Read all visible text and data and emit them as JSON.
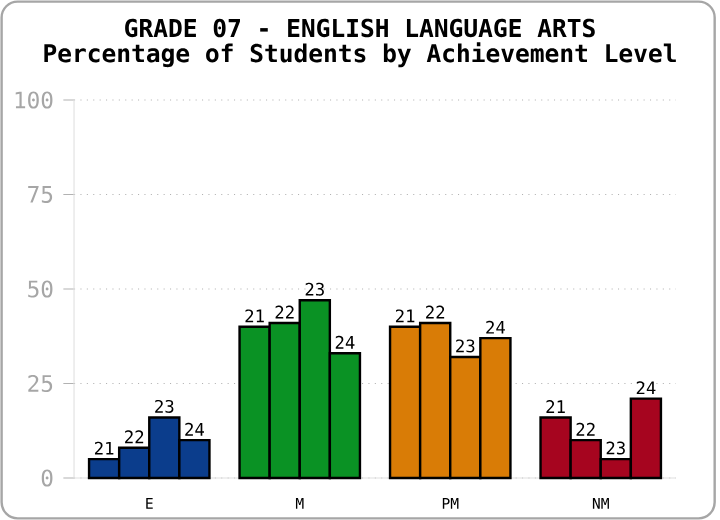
{
  "chart_data": {
    "type": "bar",
    "title": "GRADE 07 - ENGLISH LANGUAGE ARTS",
    "subtitle": "Percentage of Students by Achievement Level",
    "categories": [
      "E",
      "M",
      "PM",
      "NM"
    ],
    "series": [
      {
        "name": "21",
        "colors": [
          "#0b3d8c",
          "#0a9224",
          "#d97c06",
          "#a6051f"
        ],
        "values": [
          5,
          40,
          40,
          16
        ]
      },
      {
        "name": "22",
        "colors": [
          "#0b3d8c",
          "#0a9224",
          "#d97c06",
          "#a6051f"
        ],
        "values": [
          8,
          41,
          41,
          10
        ]
      },
      {
        "name": "23",
        "colors": [
          "#0b3d8c",
          "#0a9224",
          "#d97c06",
          "#a6051f"
        ],
        "values": [
          16,
          47,
          32,
          5
        ]
      },
      {
        "name": "24",
        "colors": [
          "#0b3d8c",
          "#0a9224",
          "#d97c06",
          "#a6051f"
        ],
        "values": [
          10,
          33,
          37,
          21
        ]
      }
    ],
    "ylim": [
      0,
      100
    ],
    "yticks": [
      0,
      25,
      50,
      75,
      100
    ],
    "grid": "y"
  }
}
